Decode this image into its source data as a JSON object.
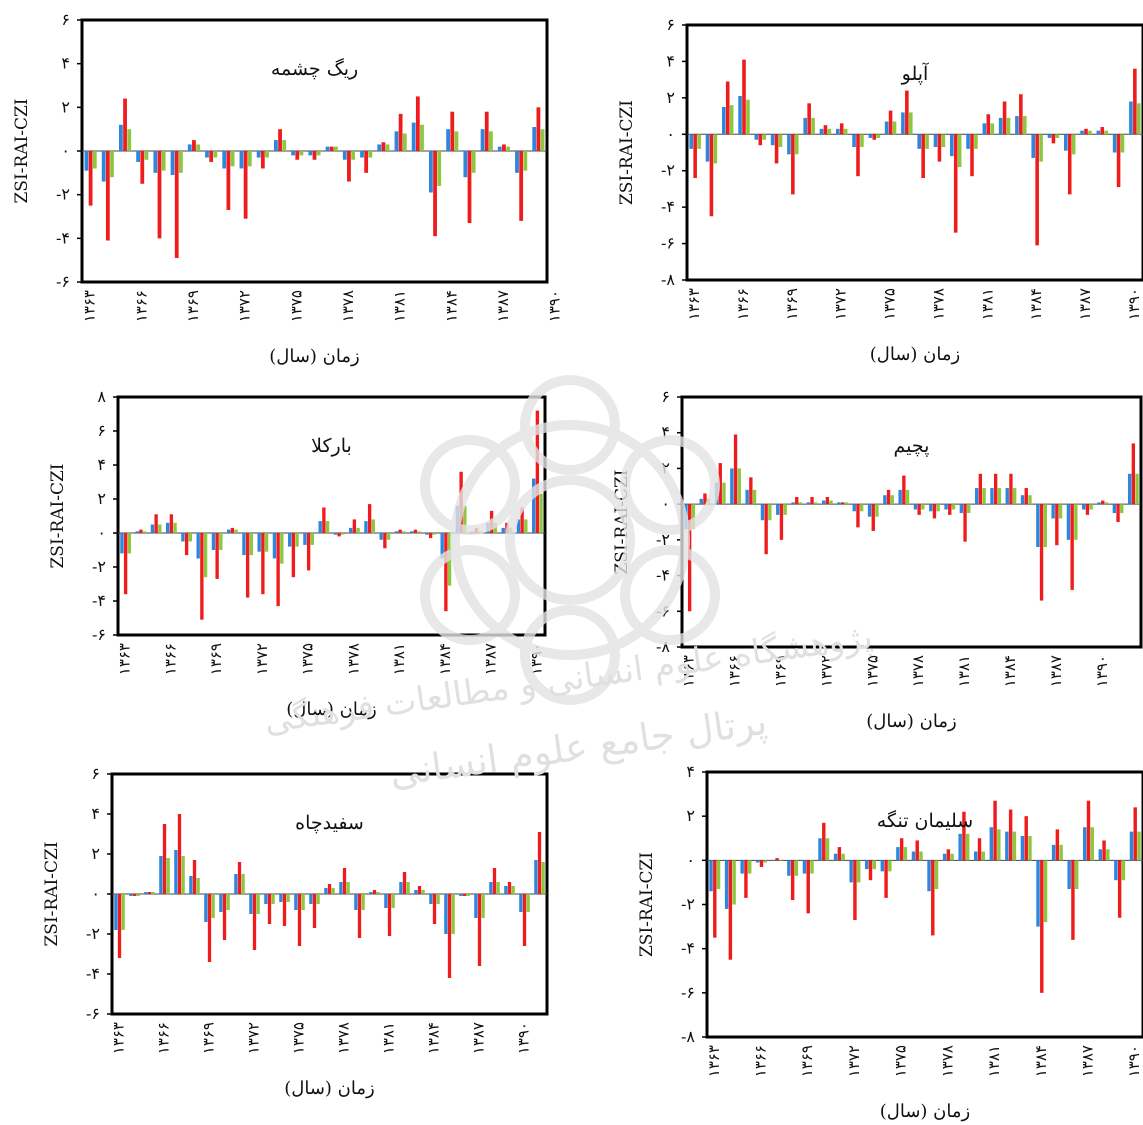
{
  "colors": {
    "zsi": "#2e86de",
    "rai": "#ee1c1c",
    "czi": "#8dc63f"
  },
  "watermark_text": [
    "پژوهشگاه علوم انسانی و مطالعات فرهنگی",
    "پرتال جامع علوم انسانی"
  ],
  "x_ticks": [
    "۱۳۶۳",
    "۱۳۶۶",
    "۱۳۶۹",
    "۱۳۷۲",
    "۱۳۷۵",
    "۱۳۷۸",
    "۱۳۸۱",
    "۱۳۸۴",
    "۱۳۸۷",
    "۱۳۹۰"
  ],
  "chart_data": [
    {
      "type": "bar",
      "title": "ریگ چشمه",
      "xlabel": "زمان (سال)",
      "ylabel": "ZSI-RAI-CZI",
      "ylim": [
        -6,
        6
      ],
      "yticks": [
        6,
        4,
        2,
        0,
        -2,
        -4,
        -6
      ],
      "ytick_labels": [
        "۶",
        "۴",
        "۲",
        "۰",
        "-۲",
        "-۴",
        "-۶"
      ],
      "series": [
        {
          "values": [
            -0.9,
            -1.4,
            1.2,
            -0.5,
            -1.0,
            -1.1,
            0.3,
            -0.3,
            -0.8,
            -0.8,
            -0.3,
            0.5,
            -0.2,
            -0.2,
            0.2,
            -0.4,
            -0.3,
            0.3,
            0.9,
            1.3,
            -1.9,
            1.0,
            -1.2,
            1.0,
            0.2,
            -1.0,
            1.1
          ]
        },
        {
          "values": [
            -2.5,
            -4.1,
            2.4,
            -1.5,
            -4.0,
            -4.9,
            0.5,
            -0.5,
            -2.7,
            -3.1,
            -0.8,
            1.0,
            -0.4,
            -0.4,
            0.2,
            -1.4,
            -1.0,
            0.4,
            1.7,
            2.5,
            -3.9,
            1.8,
            -3.3,
            1.8,
            0.3,
            -3.2,
            2.0
          ]
        },
        {
          "values": [
            -0.8,
            -1.2,
            1.0,
            -0.4,
            -0.9,
            -1.0,
            0.3,
            -0.3,
            -0.7,
            -0.7,
            -0.3,
            0.5,
            -0.2,
            -0.2,
            0.2,
            -0.4,
            -0.3,
            0.3,
            0.8,
            1.2,
            -1.6,
            0.9,
            -1.0,
            0.9,
            0.2,
            -0.9,
            1.0
          ]
        }
      ]
    },
    {
      "type": "bar",
      "title": "آپلو",
      "xlabel": "زمان (سال)",
      "ylabel": "ZSI-RAI-CZI",
      "ylim": [
        -8,
        6
      ],
      "yticks": [
        6,
        4,
        2,
        0,
        -2,
        -4,
        -6,
        -8
      ],
      "ytick_labels": [
        "۶",
        "۴",
        "۲",
        "۰",
        "-۲",
        "-۴",
        "-۶",
        "-۸"
      ],
      "series": [
        {
          "values": [
            -0.8,
            -1.5,
            1.5,
            2.1,
            -0.3,
            -0.6,
            -1.1,
            0.9,
            0.3,
            0.3,
            -0.7,
            -0.2,
            0.7,
            1.2,
            -0.8,
            -0.7,
            -1.2,
            -0.8,
            0.6,
            0.9,
            1.0,
            -1.3,
            -0.2,
            -0.9,
            0.2,
            0.2,
            -1.0,
            1.8
          ]
        },
        {
          "values": [
            -2.4,
            -4.5,
            2.9,
            4.1,
            -0.6,
            -1.6,
            -3.3,
            1.7,
            0.5,
            0.6,
            -2.3,
            -0.3,
            1.3,
            2.4,
            -2.4,
            -1.5,
            -5.4,
            -2.3,
            1.1,
            1.8,
            2.2,
            -6.1,
            -0.5,
            -3.3,
            0.3,
            0.4,
            -2.9,
            3.6
          ]
        },
        {
          "values": [
            -0.8,
            -1.6,
            1.6,
            1.9,
            -0.3,
            -0.7,
            -1.1,
            0.9,
            0.3,
            0.3,
            -0.7,
            -0.2,
            0.7,
            1.2,
            -0.8,
            -0.7,
            -1.8,
            -0.8,
            0.6,
            0.9,
            1.0,
            -1.5,
            -0.2,
            -1.1,
            0.2,
            0.2,
            -1.0,
            1.7
          ]
        }
      ]
    },
    {
      "type": "bar",
      "title": "بارکلا",
      "xlabel": "زمان (سال)",
      "ylabel": "ZSI-RAI-CZI",
      "ylim": [
        -6,
        8
      ],
      "yticks": [
        8,
        6,
        4,
        2,
        0,
        -2,
        -4,
        -6
      ],
      "ytick_labels": [
        "۸",
        "۶",
        "۴",
        "۲",
        "۰",
        "-۲",
        "-۴",
        "-۶"
      ],
      "series": [
        {
          "values": [
            -1.2,
            0.1,
            0.5,
            0.6,
            -0.5,
            -1.5,
            -1.0,
            0.2,
            -1.3,
            -1.1,
            -1.5,
            -0.8,
            -0.7,
            0.7,
            -0.1,
            0.3,
            0.7,
            -0.4,
            0.1,
            0.1,
            -0.1,
            -1.5,
            1.6,
            0.1,
            0.6,
            0.3,
            0.8,
            3.2
          ]
        },
        {
          "values": [
            -3.6,
            0.2,
            1.1,
            1.1,
            -1.3,
            -5.1,
            -2.7,
            0.3,
            -3.8,
            -3.6,
            -4.3,
            -2.6,
            -2.2,
            1.5,
            -0.2,
            0.8,
            1.7,
            -0.9,
            0.2,
            0.2,
            -0.3,
            -4.6,
            3.6,
            0.3,
            1.3,
            0.6,
            1.5,
            7.2
          ]
        },
        {
          "values": [
            -1.2,
            0.1,
            0.5,
            0.6,
            -0.5,
            -2.6,
            -1.0,
            0.2,
            -1.3,
            -1.1,
            -1.8,
            -0.8,
            -0.7,
            0.7,
            -0.1,
            0.3,
            0.8,
            -0.4,
            0.1,
            0.1,
            -0.1,
            -3.1,
            1.6,
            0.1,
            0.6,
            0.3,
            0.8,
            2.3
          ]
        }
      ]
    },
    {
      "type": "bar",
      "title": "پچیم",
      "xlabel": "زمان (سال)",
      "ylabel": "ZSI-RAI-CZI",
      "ylim": [
        -8,
        6
      ],
      "yticks": [
        6,
        4,
        2,
        0,
        -2,
        -4,
        -6,
        -8
      ],
      "ytick_labels": [
        "۶",
        "۴",
        "۲",
        "۰",
        "-۲",
        "-۴",
        "-۶",
        "-۸"
      ],
      "series": [
        {
          "values": [
            -1.4,
            0.3,
            1.2,
            2.0,
            0.8,
            -0.9,
            -0.6,
            0.1,
            0.1,
            0.2,
            0.1,
            -0.4,
            -0.7,
            0.5,
            0.8,
            -0.3,
            -0.4,
            -0.3,
            -0.5,
            0.9,
            0.9,
            0.9,
            0.5,
            -2.4,
            -0.8,
            -2.0,
            -0.3,
            0.1,
            -0.5,
            1.7
          ]
        },
        {
          "values": [
            -6.0,
            0.6,
            2.3,
            3.9,
            1.5,
            -2.8,
            -2.0,
            0.4,
            0.4,
            0.4,
            0.1,
            -1.3,
            -1.5,
            0.8,
            1.6,
            -0.6,
            -0.8,
            -0.6,
            -2.1,
            1.7,
            1.7,
            1.7,
            0.9,
            -5.4,
            -2.3,
            -4.8,
            -0.6,
            0.2,
            -1.0,
            3.4
          ]
        },
        {
          "values": [
            -1.4,
            0.3,
            1.2,
            2.0,
            0.8,
            -0.9,
            -0.6,
            0.1,
            0.1,
            0.2,
            0.1,
            -0.4,
            -0.7,
            0.5,
            0.8,
            -0.3,
            -0.4,
            -0.3,
            -0.5,
            0.9,
            0.9,
            0.9,
            0.5,
            -2.4,
            -0.8,
            -2.0,
            -0.3,
            0.1,
            -0.5,
            1.7
          ]
        }
      ]
    },
    {
      "type": "bar",
      "title": "سفیدچاه",
      "xlabel": "زمان (سال)",
      "ylabel": "ZSI-RAI-CZI",
      "ylim": [
        -6,
        6
      ],
      "yticks": [
        6,
        4,
        2,
        0,
        -2,
        -4,
        -6
      ],
      "ytick_labels": [
        "۶",
        "۴",
        "۲",
        "۰",
        "-۲",
        "-۴",
        "-۶"
      ],
      "series": [
        {
          "values": [
            -1.8,
            -0.1,
            0.1,
            1.9,
            2.2,
            0.9,
            -1.4,
            -0.9,
            1.0,
            -1.0,
            -0.5,
            -0.4,
            -0.8,
            -0.5,
            0.3,
            0.6,
            -0.8,
            0.1,
            -0.7,
            0.6,
            0.2,
            -0.5,
            -2.0,
            -0.1,
            -1.2,
            0.6,
            0.4,
            -0.9,
            1.7
          ]
        },
        {
          "values": [
            -3.2,
            -0.1,
            0.1,
            3.5,
            4.0,
            1.7,
            -3.4,
            -2.3,
            1.6,
            -2.8,
            -1.5,
            -1.6,
            -2.6,
            -1.7,
            0.5,
            1.3,
            -2.2,
            0.2,
            -2.1,
            1.1,
            0.4,
            -1.5,
            -4.2,
            -0.1,
            -3.6,
            1.3,
            0.6,
            -2.6,
            3.1
          ]
        },
        {
          "values": [
            -1.8,
            -0.1,
            0.1,
            1.8,
            1.9,
            0.8,
            -1.2,
            -0.8,
            1.0,
            -1.0,
            -0.5,
            -0.4,
            -0.8,
            -0.5,
            0.3,
            0.6,
            -0.8,
            0.1,
            -0.7,
            0.6,
            0.2,
            -0.5,
            -2.0,
            -0.1,
            -1.2,
            0.6,
            0.4,
            -0.9,
            1.6
          ]
        }
      ]
    },
    {
      "type": "bar",
      "title": "سلیمان تنگه",
      "xlabel": "زمان (سال)",
      "ylabel": "ZSI-RAI-CZI",
      "ylim": [
        -8,
        4
      ],
      "yticks": [
        4,
        2,
        0,
        -2,
        -4,
        -6,
        -8
      ],
      "ytick_labels": [
        "۴",
        "۲",
        "۰",
        "-۲",
        "-۴",
        "-۶",
        "-۸"
      ],
      "series": [
        {
          "values": [
            -1.4,
            -2.2,
            -0.6,
            -0.1,
            0.0,
            -0.7,
            -0.6,
            1.0,
            0.3,
            -1.0,
            -0.4,
            -0.5,
            0.6,
            0.4,
            -1.4,
            0.3,
            1.2,
            0.4,
            1.5,
            1.3,
            1.1,
            -3.0,
            0.7,
            -1.3,
            1.5,
            0.5,
            -0.9,
            1.3
          ]
        },
        {
          "values": [
            -3.5,
            -4.5,
            -1.7,
            -0.3,
            0.1,
            -1.8,
            -2.4,
            1.7,
            0.6,
            -2.7,
            -0.9,
            -1.7,
            1.0,
            0.9,
            -3.4,
            0.5,
            2.2,
            1.0,
            2.7,
            2.3,
            2.0,
            -6.0,
            1.4,
            -3.6,
            2.7,
            0.9,
            -2.6,
            2.4
          ]
        },
        {
          "values": [
            -1.3,
            -2.0,
            -0.6,
            -0.1,
            0.0,
            -0.7,
            -0.6,
            1.0,
            0.3,
            -1.0,
            -0.4,
            -0.5,
            0.6,
            0.4,
            -1.3,
            0.3,
            1.2,
            0.4,
            1.4,
            1.3,
            1.1,
            -2.8,
            0.7,
            -1.3,
            1.5,
            0.5,
            -0.9,
            1.3
          ]
        }
      ]
    }
  ]
}
